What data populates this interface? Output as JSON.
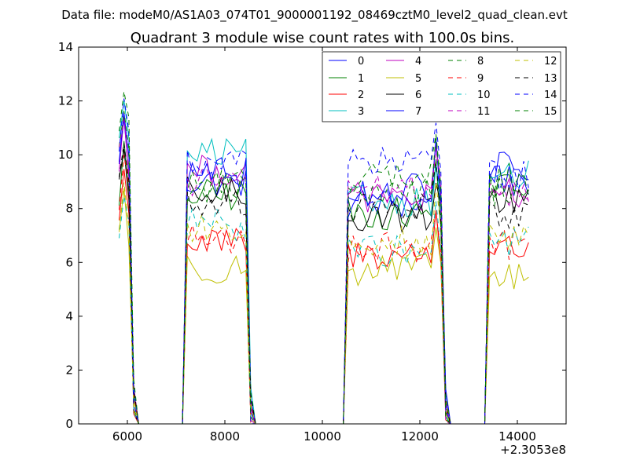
{
  "figure": {
    "suptitle": "Data file: modeM0/AS1A03_074T01_9000001192_08469cztM0_level2_quad_clean.evt"
  },
  "chart_data": {
    "type": "line",
    "title": "Quadrant 3 module wise count rates with 100.0s bins.",
    "xlabel": "",
    "ylabel": "",
    "x_offset_label": "+2.3053e8",
    "xlim": [
      5000,
      15000
    ],
    "ylim": [
      0,
      14
    ],
    "x_ticks": [
      6000,
      8000,
      10000,
      12000,
      14000
    ],
    "x_tick_labels": [
      "6000",
      "8000",
      "10000",
      "12000",
      "14000"
    ],
    "y_ticks": [
      0,
      2,
      4,
      6,
      8,
      10,
      12,
      14
    ],
    "y_tick_labels": [
      "0",
      "2",
      "4",
      "6",
      "8",
      "10",
      "12",
      "14"
    ],
    "grid": false,
    "legend": {
      "location": "top-right",
      "columns": 4
    },
    "segments": [
      {
        "start": 5830,
        "end": 6130,
        "edge": "ramp_down"
      },
      {
        "start": 7230,
        "end": 8530,
        "edge": "both"
      },
      {
        "start": 10530,
        "end": 12530,
        "edge": "both"
      },
      {
        "start": 13430,
        "end": 14230,
        "edge": "ramp_up"
      }
    ],
    "series": [
      {
        "name": "0",
        "color": "#0000ff",
        "dash": "solid",
        "levels": [
          9.4,
          9.0,
          8.2,
          9.5
        ]
      },
      {
        "name": "1",
        "color": "#008000",
        "dash": "solid",
        "levels": [
          8.6,
          8.5,
          7.8,
          8.8
        ]
      },
      {
        "name": "2",
        "color": "#ff0000",
        "dash": "solid",
        "levels": [
          7.6,
          6.7,
          6.3,
          6.5
        ]
      },
      {
        "name": "3",
        "color": "#00bfbf",
        "dash": "solid",
        "levels": [
          10.2,
          10.0,
          8.3,
          9.2
        ]
      },
      {
        "name": "4",
        "color": "#bf00bf",
        "dash": "solid",
        "levels": [
          9.7,
          9.4,
          8.4,
          8.6
        ]
      },
      {
        "name": "5",
        "color": "#bfbf00",
        "dash": "solid",
        "levels": [
          7.0,
          5.8,
          5.7,
          5.4
        ]
      },
      {
        "name": "6",
        "color": "#000000",
        "dash": "solid",
        "levels": [
          8.5,
          8.6,
          7.7,
          8.3
        ]
      },
      {
        "name": "7",
        "color": "#0000ff",
        "dash": "solid",
        "levels": [
          9.9,
          9.4,
          8.7,
          9.0
        ]
      },
      {
        "name": "8",
        "color": "#008000",
        "dash": "dashed",
        "levels": [
          10.0,
          9.0,
          9.2,
          9.1
        ]
      },
      {
        "name": "9",
        "color": "#ff0000",
        "dash": "dashed",
        "levels": [
          8.4,
          6.9,
          6.6,
          6.7
        ]
      },
      {
        "name": "10",
        "color": "#00bfbf",
        "dash": "dashed",
        "levels": [
          6.9,
          7.4,
          6.4,
          6.8
        ]
      },
      {
        "name": "11",
        "color": "#bf00bf",
        "dash": "dashed",
        "levels": [
          9.8,
          9.0,
          8.7,
          8.6
        ]
      },
      {
        "name": "12",
        "color": "#bfbf00",
        "dash": "dashed",
        "levels": [
          7.5,
          7.2,
          6.8,
          7.0
        ]
      },
      {
        "name": "13",
        "color": "#000000",
        "dash": "dashed",
        "levels": [
          9.0,
          8.2,
          8.0,
          7.8
        ]
      },
      {
        "name": "14",
        "color": "#0000ff",
        "dash": "dashed",
        "levels": [
          10.7,
          9.6,
          9.7,
          9.3
        ]
      },
      {
        "name": "15",
        "color": "#008000",
        "dash": "dashed",
        "levels": [
          11.0,
          8.8,
          8.6,
          8.7
        ]
      }
    ]
  }
}
